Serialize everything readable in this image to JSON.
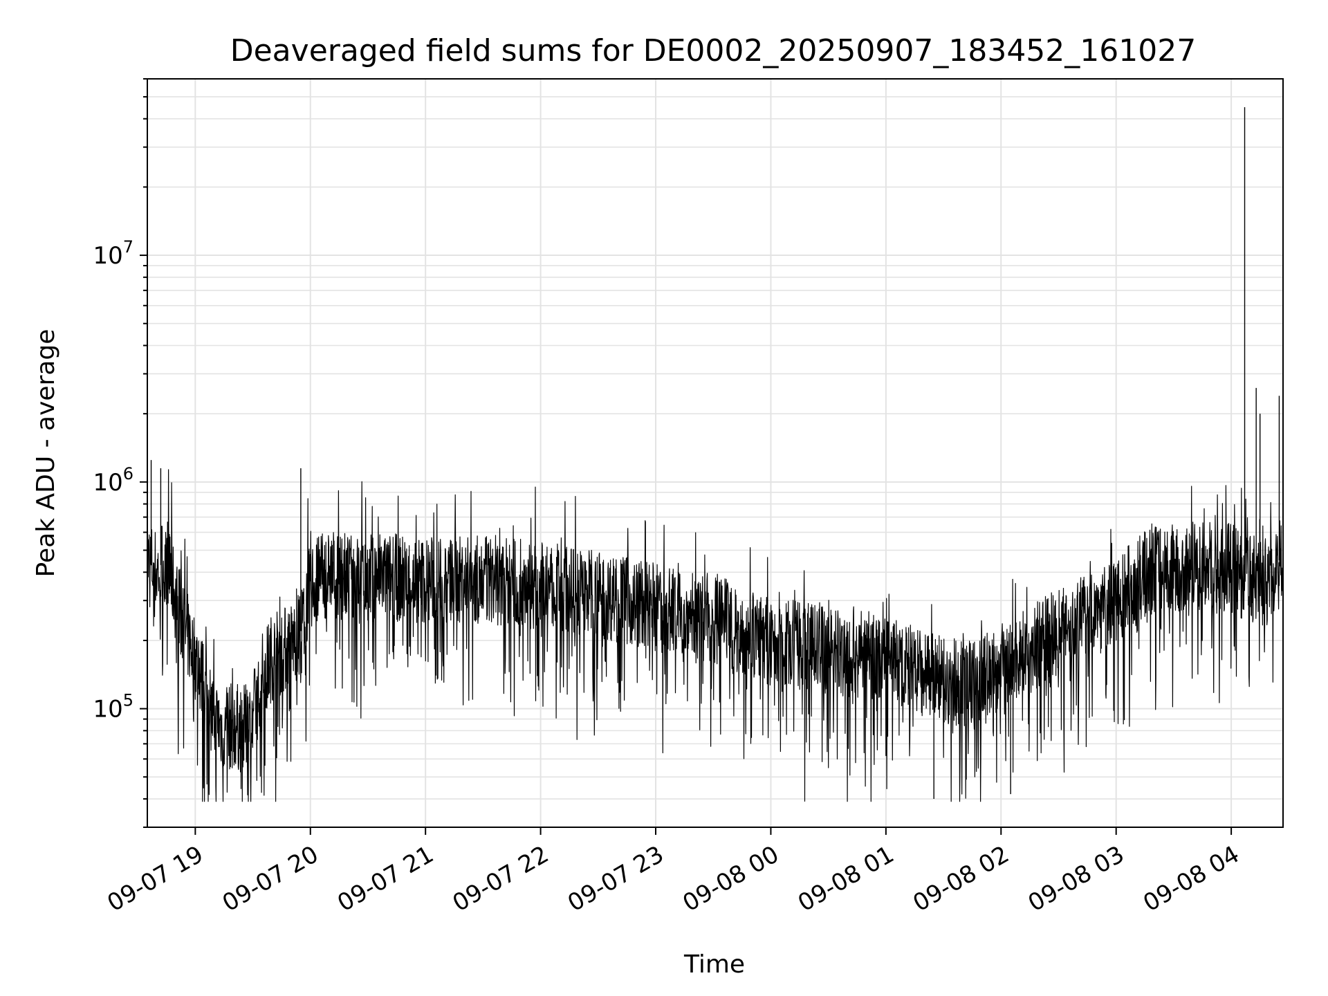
{
  "chart_data": {
    "type": "line",
    "title": "Deaveraged field sums for DE0002_20250907_183452_161027",
    "xlabel": "Time",
    "ylabel": "Peak ADU - average",
    "y_scale": "log",
    "ylim": [
      30000,
      60000000
    ],
    "xlim": [
      "2025-09-07T18:35:00",
      "2025-09-08T04:27:00"
    ],
    "grid": true,
    "line_color": "#000000",
    "x_ticks": [
      {
        "value": "2025-09-07T19:00:00",
        "label": "09-07 19"
      },
      {
        "value": "2025-09-07T20:00:00",
        "label": "09-07 20"
      },
      {
        "value": "2025-09-07T21:00:00",
        "label": "09-07 21"
      },
      {
        "value": "2025-09-07T22:00:00",
        "label": "09-07 22"
      },
      {
        "value": "2025-09-07T23:00:00",
        "label": "09-07 23"
      },
      {
        "value": "2025-09-08T00:00:00",
        "label": "09-08 00"
      },
      {
        "value": "2025-09-08T01:00:00",
        "label": "09-08 01"
      },
      {
        "value": "2025-09-08T02:00:00",
        "label": "09-08 02"
      },
      {
        "value": "2025-09-08T03:00:00",
        "label": "09-08 03"
      },
      {
        "value": "2025-09-08T04:00:00",
        "label": "09-08 04"
      }
    ],
    "y_ticks": [
      {
        "value": 100000,
        "base": "10",
        "exp": "5"
      },
      {
        "value": 1000000,
        "base": "10",
        "exp": "6"
      },
      {
        "value": 10000000,
        "base": "10",
        "exp": "7"
      }
    ],
    "series": [
      {
        "x": [
          "2025-09-07T18:35:00",
          "2025-09-07T18:40:00",
          "2025-09-07T18:45:00",
          "2025-09-07T18:50:00",
          "2025-09-07T18:55:00",
          "2025-09-07T19:00:00",
          "2025-09-07T19:05:00",
          "2025-09-07T19:10:00",
          "2025-09-07T19:15:00",
          "2025-09-07T19:20:00",
          "2025-09-07T19:25:00",
          "2025-09-07T19:30:00",
          "2025-09-07T19:35:00",
          "2025-09-07T19:40:00",
          "2025-09-07T19:45:00",
          "2025-09-07T19:50:00",
          "2025-09-07T19:55:00",
          "2025-09-07T20:00:00",
          "2025-09-07T20:10:00",
          "2025-09-07T20:20:00",
          "2025-09-07T20:40:00",
          "2025-09-07T21:00:00",
          "2025-09-07T21:30:00",
          "2025-09-07T22:00:00",
          "2025-09-07T22:30:00",
          "2025-09-07T23:00:00",
          "2025-09-07T23:30:00",
          "2025-09-08T00:00:00",
          "2025-09-08T00:30:00",
          "2025-09-08T01:00:00",
          "2025-09-08T01:20:00",
          "2025-09-08T01:40:00",
          "2025-09-08T02:00:00",
          "2025-09-08T02:30:00",
          "2025-09-08T03:00:00",
          "2025-09-08T03:20:00",
          "2025-09-08T03:40:00",
          "2025-09-08T04:00:00",
          "2025-09-08T04:07:00",
          "2025-09-08T04:10:00",
          "2025-09-08T04:15:00",
          "2025-09-08T04:20:00",
          "2025-09-08T04:27:00"
        ],
        "values": [
          450000,
          400000,
          480000,
          300000,
          220000,
          170000,
          120000,
          90000,
          80000,
          85000,
          80000,
          90000,
          140000,
          170000,
          180000,
          190000,
          220000,
          350000,
          400000,
          380000,
          380000,
          370000,
          370000,
          350000,
          320000,
          280000,
          250000,
          200000,
          180000,
          170000,
          140000,
          130000,
          150000,
          220000,
          300000,
          420000,
          430000,
          420000,
          380000,
          380000,
          370000,
          350000,
          500000
        ]
      }
    ],
    "spikes": [
      {
        "x": "2025-09-07T18:37:00",
        "y": 1250000
      },
      {
        "x": "2025-09-07T18:42:00",
        "y": 1150000
      },
      {
        "x": "2025-09-07T19:55:00",
        "y": 1150000
      },
      {
        "x": "2025-09-08T04:07:00",
        "y": 45000000
      },
      {
        "x": "2025-09-08T04:13:00",
        "y": 2600000
      },
      {
        "x": "2025-09-08T04:15:00",
        "y": 2000000
      },
      {
        "x": "2025-09-08T04:25:00",
        "y": 2400000
      },
      {
        "x": "2025-09-08T01:25:00",
        "y": 40000
      },
      {
        "x": "2025-09-08T02:05:00",
        "y": 42000
      }
    ]
  }
}
